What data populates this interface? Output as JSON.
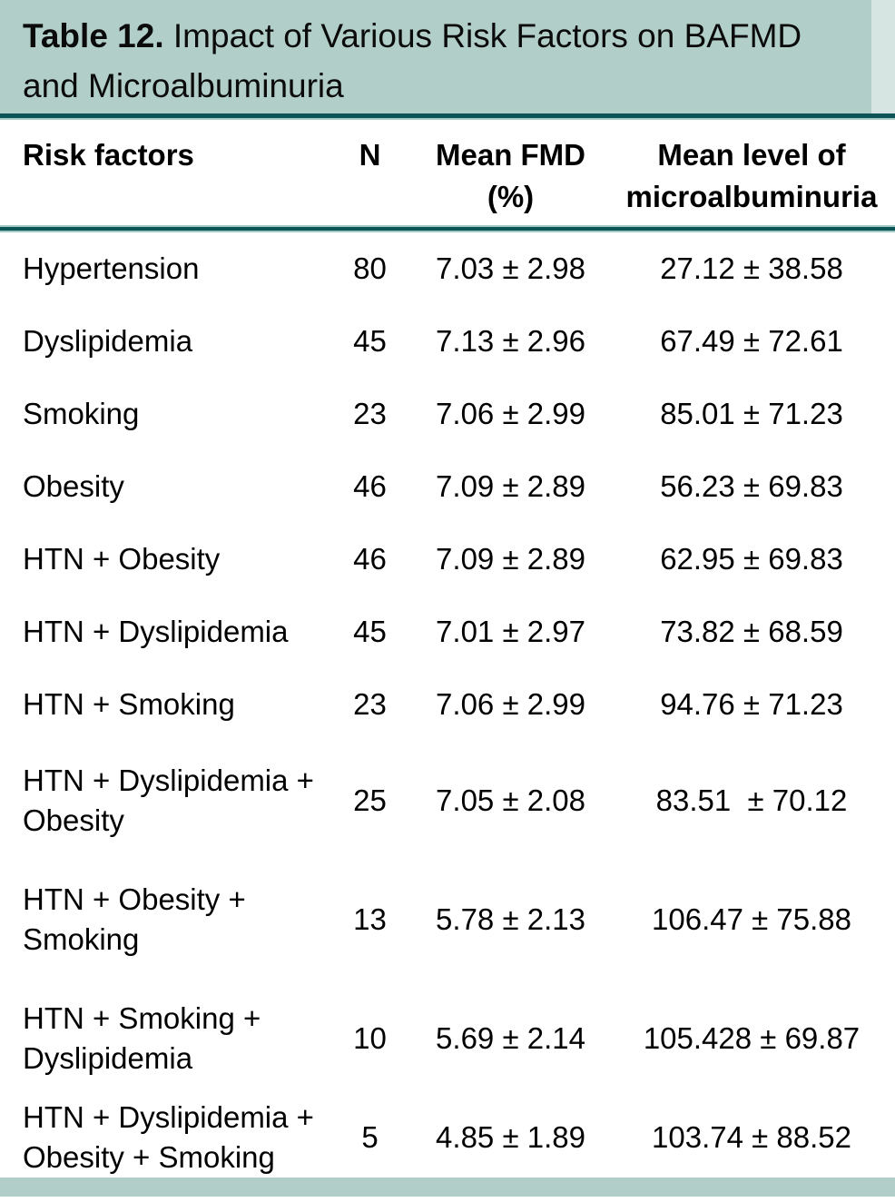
{
  "header": {
    "title_number": "Table 12.",
    "title_line1": " Impact of Various Risk Factors on BAFMD",
    "title_line2": "and Microalbuminuria"
  },
  "columns": {
    "risk_factors": "Risk factors",
    "n": "N",
    "mean_fmd": "Mean FMD\n(%)",
    "mean_microalbuminuria": "Mean level of\nmicroalbuminuria"
  },
  "rows": [
    {
      "risk_factor": "Hypertension",
      "n": "80",
      "mean_fmd": "7.03 ± 2.98",
      "microalbuminuria": "27.12 ± 38.58"
    },
    {
      "risk_factor": "Dyslipidemia",
      "n": "45",
      "mean_fmd": "7.13 ± 2.96",
      "microalbuminuria": "67.49 ± 72.61"
    },
    {
      "risk_factor": "Smoking",
      "n": "23",
      "mean_fmd": "7.06 ± 2.99",
      "microalbuminuria": "85.01 ± 71.23"
    },
    {
      "risk_factor": "Obesity",
      "n": "46",
      "mean_fmd": "7.09 ± 2.89",
      "microalbuminuria": "56.23 ± 69.83"
    },
    {
      "risk_factor": "HTN + Obesity",
      "n": "46",
      "mean_fmd": "7.09 ± 2.89",
      "microalbuminuria": "62.95 ± 69.83"
    },
    {
      "risk_factor": "HTN + Dyslipidemia",
      "n": "45",
      "mean_fmd": "7.01 ± 2.97",
      "microalbuminuria": "73.82 ± 68.59"
    },
    {
      "risk_factor": "HTN + Smoking",
      "n": "23",
      "mean_fmd": "7.06 ± 2.99",
      "microalbuminuria": "94.76 ± 71.23"
    },
    {
      "risk_factor": "HTN + Dyslipidemia +\nObesity",
      "n": "25",
      "mean_fmd": "7.05 ± 2.08",
      "microalbuminuria": "83.51  ± 70.12"
    },
    {
      "risk_factor": "HTN + Obesity +\nSmoking",
      "n": "13",
      "mean_fmd": "5.78 ± 2.13",
      "microalbuminuria": "106.47 ± 75.88"
    },
    {
      "risk_factor": "HTN + Smoking +\nDyslipidemia",
      "n": "10",
      "mean_fmd": "5.69 ± 2.14",
      "microalbuminuria": "105.428 ± 69.87"
    },
    {
      "risk_factor": "HTN + Dyslipidemia +\nObesity + Smoking",
      "n": "5",
      "mean_fmd": "4.85 ± 1.89",
      "microalbuminuria": "103.74 ± 88.52"
    }
  ],
  "colors": {
    "band_teal": "#b1cec9",
    "rule_dark_teal": "#0d5456",
    "rule_light_teal": "#a3c9c5",
    "text": "#000000"
  }
}
